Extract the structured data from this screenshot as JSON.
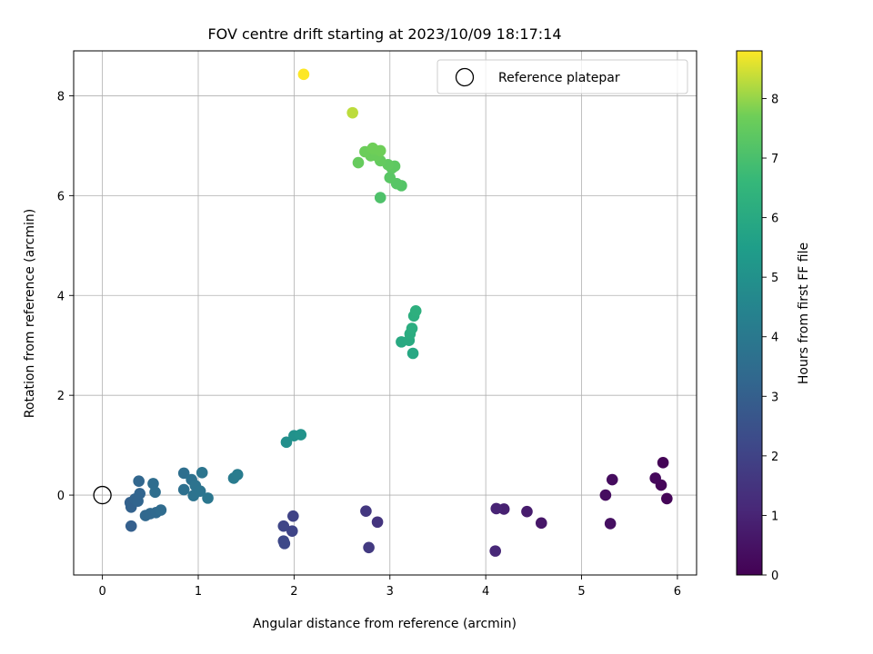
{
  "chart_data": {
    "type": "scatter",
    "title": "FOV centre drift starting at 2023/10/09 18:17:14",
    "xlabel": "Angular distance from reference (arcmin)",
    "ylabel": "Rotation from reference (arcmin)",
    "xlim": [
      -0.3,
      6.2
    ],
    "ylim": [
      -1.6,
      8.9
    ],
    "xticks": [
      0,
      1,
      2,
      3,
      4,
      5,
      6
    ],
    "yticks": [
      0,
      2,
      4,
      6,
      8
    ],
    "grid": true,
    "legend": {
      "placement": "top-right",
      "entries": [
        "Reference platepar"
      ]
    },
    "reference_point": {
      "x": 0,
      "y": 0
    },
    "colorbar": {
      "label": "Hours from first FF file",
      "min": 0,
      "max": 8.8,
      "ticks": [
        0,
        1,
        2,
        3,
        4,
        5,
        6,
        7,
        8
      ],
      "colormap": "viridis"
    },
    "points": [
      {
        "x": 5.85,
        "y": 0.65,
        "c": 0.05
      },
      {
        "x": 5.89,
        "y": -0.07,
        "c": 0.1
      },
      {
        "x": 5.83,
        "y": 0.2,
        "c": 0.15
      },
      {
        "x": 5.77,
        "y": 0.34,
        "c": 0.2
      },
      {
        "x": 5.32,
        "y": 0.31,
        "c": 0.3
      },
      {
        "x": 5.25,
        "y": 0.0,
        "c": 0.35
      },
      {
        "x": 5.3,
        "y": -0.57,
        "c": 0.4
      },
      {
        "x": 4.58,
        "y": -0.56,
        "c": 0.6
      },
      {
        "x": 4.43,
        "y": -0.33,
        "c": 0.75
      },
      {
        "x": 4.19,
        "y": -0.28,
        "c": 0.9
      },
      {
        "x": 4.11,
        "y": -0.27,
        "c": 1.0
      },
      {
        "x": 4.1,
        "y": -1.12,
        "c": 1.1
      },
      {
        "x": 2.87,
        "y": -0.54,
        "c": 1.5
      },
      {
        "x": 2.75,
        "y": -0.32,
        "c": 1.6
      },
      {
        "x": 2.78,
        "y": -1.05,
        "c": 1.7
      },
      {
        "x": 1.99,
        "y": -0.42,
        "c": 2.0
      },
      {
        "x": 1.98,
        "y": -0.72,
        "c": 2.05
      },
      {
        "x": 1.89,
        "y": -0.62,
        "c": 2.1
      },
      {
        "x": 1.89,
        "y": -0.92,
        "c": 2.15
      },
      {
        "x": 1.9,
        "y": -0.97,
        "c": 2.2
      },
      {
        "x": 0.3,
        "y": -0.62,
        "c": 3.0
      },
      {
        "x": 0.29,
        "y": -0.15,
        "c": 3.05
      },
      {
        "x": 0.3,
        "y": -0.24,
        "c": 3.1
      },
      {
        "x": 0.34,
        "y": -0.08,
        "c": 3.15
      },
      {
        "x": 0.37,
        "y": -0.12,
        "c": 3.2
      },
      {
        "x": 0.39,
        "y": 0.03,
        "c": 3.2
      },
      {
        "x": 0.38,
        "y": 0.28,
        "c": 3.25
      },
      {
        "x": 0.45,
        "y": -0.41,
        "c": 3.3
      },
      {
        "x": 0.5,
        "y": -0.37,
        "c": 3.35
      },
      {
        "x": 0.56,
        "y": -0.35,
        "c": 3.4
      },
      {
        "x": 0.61,
        "y": -0.3,
        "c": 3.45
      },
      {
        "x": 0.53,
        "y": 0.23,
        "c": 3.5
      },
      {
        "x": 0.55,
        "y": 0.06,
        "c": 3.55
      },
      {
        "x": 0.85,
        "y": 0.44,
        "c": 3.6
      },
      {
        "x": 0.85,
        "y": 0.11,
        "c": 3.65
      },
      {
        "x": 0.93,
        "y": 0.31,
        "c": 3.7
      },
      {
        "x": 0.95,
        "y": -0.01,
        "c": 3.75
      },
      {
        "x": 0.97,
        "y": 0.19,
        "c": 3.75
      },
      {
        "x": 1.02,
        "y": 0.08,
        "c": 3.8
      },
      {
        "x": 1.04,
        "y": 0.45,
        "c": 3.85
      },
      {
        "x": 1.1,
        "y": -0.06,
        "c": 3.9
      },
      {
        "x": 1.37,
        "y": 0.34,
        "c": 4.1
      },
      {
        "x": 1.41,
        "y": 0.41,
        "c": 4.15
      },
      {
        "x": 1.92,
        "y": 1.06,
        "c": 4.9
      },
      {
        "x": 2.0,
        "y": 1.19,
        "c": 5.0
      },
      {
        "x": 2.07,
        "y": 1.21,
        "c": 5.05
      },
      {
        "x": 3.24,
        "y": 2.84,
        "c": 5.9
      },
      {
        "x": 3.12,
        "y": 3.07,
        "c": 6.0
      },
      {
        "x": 3.2,
        "y": 3.1,
        "c": 6.05
      },
      {
        "x": 3.21,
        "y": 3.23,
        "c": 6.1
      },
      {
        "x": 3.23,
        "y": 3.34,
        "c": 6.15
      },
      {
        "x": 3.25,
        "y": 3.59,
        "c": 6.2
      },
      {
        "x": 3.27,
        "y": 3.69,
        "c": 6.25
      },
      {
        "x": 2.9,
        "y": 5.96,
        "c": 7.1
      },
      {
        "x": 3.12,
        "y": 6.2,
        "c": 7.2
      },
      {
        "x": 3.07,
        "y": 6.24,
        "c": 7.25
      },
      {
        "x": 3.0,
        "y": 6.36,
        "c": 7.3
      },
      {
        "x": 3.02,
        "y": 6.55,
        "c": 7.35
      },
      {
        "x": 3.05,
        "y": 6.59,
        "c": 7.4
      },
      {
        "x": 2.98,
        "y": 6.62,
        "c": 7.45
      },
      {
        "x": 2.9,
        "y": 6.7,
        "c": 7.5
      },
      {
        "x": 2.67,
        "y": 6.66,
        "c": 7.55
      },
      {
        "x": 2.8,
        "y": 6.8,
        "c": 7.6
      },
      {
        "x": 2.86,
        "y": 6.8,
        "c": 7.6
      },
      {
        "x": 2.74,
        "y": 6.88,
        "c": 7.65
      },
      {
        "x": 2.84,
        "y": 6.91,
        "c": 7.65
      },
      {
        "x": 2.82,
        "y": 6.95,
        "c": 7.7
      },
      {
        "x": 2.9,
        "y": 6.9,
        "c": 7.7
      },
      {
        "x": 2.61,
        "y": 7.66,
        "c": 8.3
      },
      {
        "x": 2.1,
        "y": 8.43,
        "c": 8.8
      }
    ]
  }
}
